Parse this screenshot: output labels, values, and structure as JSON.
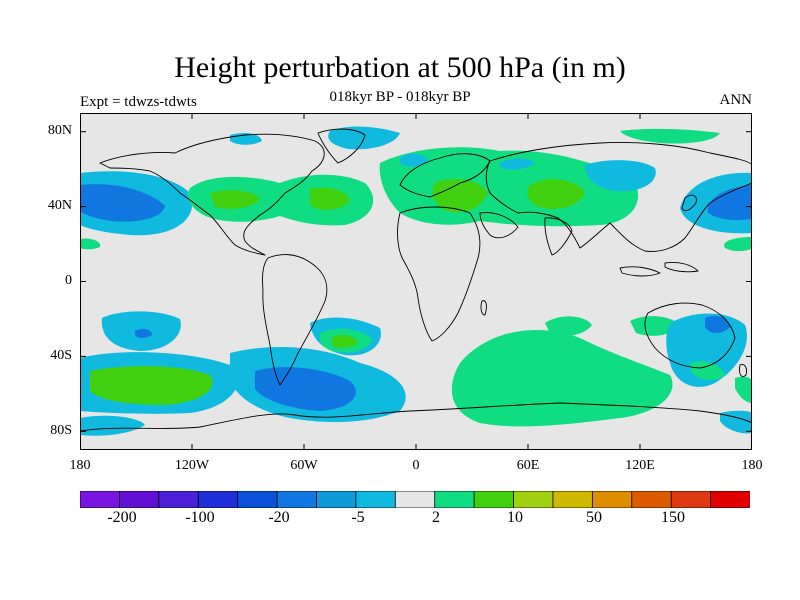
{
  "title": "Height perturbation at 500 hPa (in m)",
  "subtitle": "018kyr BP - 018kyr BP",
  "left_label": "Expt = tdwzs-tdwts",
  "right_label": "ANN",
  "map": {
    "projection": "cylindrical-equidistant",
    "lon_range": [
      -180,
      180
    ],
    "lat_range": [
      -90,
      90
    ],
    "background_color": "#e6e6e6",
    "lat_labels": [
      "80N",
      "40N",
      "0",
      "40S",
      "80S"
    ],
    "lon_labels": [
      "180",
      "120W",
      "60W",
      "0",
      "60E",
      "120E",
      "180"
    ]
  },
  "colorbar": {
    "colors": [
      "#7a14e0",
      "#6210d4",
      "#4a20d8",
      "#2030d8",
      "#0a50d8",
      "#1076e0",
      "#109ad8",
      "#10bade",
      "#e6e6e6",
      "#10dc82",
      "#40d010",
      "#a0d010",
      "#d0b800",
      "#de8c00",
      "#dc5a00",
      "#de3810",
      "#e00000"
    ],
    "labels": [
      "-200",
      "-100",
      "-20",
      "-5",
      "2",
      "10",
      "50",
      "150"
    ]
  },
  "chart_data": {
    "type": "heatmap",
    "title": "Height perturbation at 500 hPa (in m)",
    "variable": "500 hPa geopotential height perturbation",
    "units": "m",
    "contour_levels": [
      -200,
      -100,
      -20,
      -5,
      2,
      10,
      50,
      150
    ],
    "fields": [
      {
        "lon": -162,
        "lat": 44,
        "value": -20
      },
      {
        "lon": 178,
        "lat": 40,
        "value": -20
      },
      {
        "lon": -150,
        "lat": -32,
        "value": -20
      },
      {
        "lon": -142,
        "lat": -58,
        "value": 10
      },
      {
        "lon": -100,
        "lat": 42,
        "value": 10
      },
      {
        "lon": -45,
        "lat": 42,
        "value": 10
      },
      {
        "lon": -40,
        "lat": -35,
        "value": 10
      },
      {
        "lon": -58,
        "lat": -62,
        "value": -20
      },
      {
        "lon": 20,
        "lat": 40,
        "value": 10
      },
      {
        "lon": 68,
        "lat": 42,
        "value": 10
      },
      {
        "lon": 102,
        "lat": 62,
        "value": -20
      },
      {
        "lon": 25,
        "lat": -52,
        "value": 2
      },
      {
        "lon": 137,
        "lat": -40,
        "value": -20
      }
    ]
  }
}
